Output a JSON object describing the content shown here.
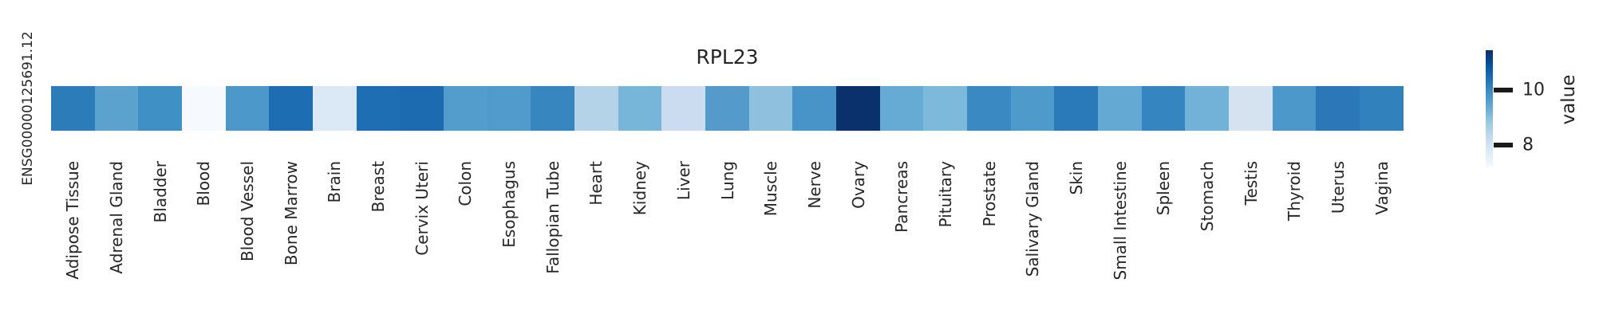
{
  "figure": {
    "title": "RPL23",
    "row_label": "ENSG00000125691.12",
    "text_color": "#262626",
    "background_color": "#ffffff"
  },
  "chart_data": {
    "type": "heatmap",
    "title": "RPL23",
    "rows": [
      "ENSG00000125691.12"
    ],
    "categories": [
      "Adipose Tissue",
      "Adrenal Gland",
      "Bladder",
      "Blood",
      "Blood Vessel",
      "Bone Marrow",
      "Brain",
      "Breast",
      "Cervix Uteri",
      "Colon",
      "Esophagus",
      "Fallopian Tube",
      "Heart",
      "Kidney",
      "Liver",
      "Lung",
      "Muscle",
      "Nerve",
      "Ovary",
      "Pancreas",
      "Pituitary",
      "Prostate",
      "Salivary Gland",
      "Skin",
      "Small Intestine",
      "Spleen",
      "Stomach",
      "Testis",
      "Thyroid",
      "Uterus",
      "Vagina"
    ],
    "values": [
      10.2,
      9.5,
      9.9,
      7.25,
      9.7,
      10.5,
      7.8,
      10.4,
      10.5,
      9.6,
      9.7,
      10.0,
      8.5,
      9.2,
      8.2,
      9.6,
      9.0,
      9.8,
      11.4,
      9.4,
      9.1,
      10.0,
      9.7,
      10.2,
      9.4,
      10.1,
      9.2,
      7.9,
      9.7,
      10.2,
      10.1
    ],
    "cell_colors": [
      "#2d7cba",
      "#5ba2cf",
      "#3f90c5",
      "#f6fafe",
      "#4c98ca",
      "#1d6db2",
      "#dbe8f5",
      "#1e6eb3",
      "#1c6bb0",
      "#539dcc",
      "#509bcb",
      "#3786c0",
      "#b4d3e9",
      "#77b5d9",
      "#cbdcf0",
      "#549acb",
      "#8fc1de",
      "#4893c7",
      "#0a316b",
      "#66abd4",
      "#7db9db",
      "#3a89c2",
      "#4e9acb",
      "#2a7ab9",
      "#64a9d3",
      "#3585c0",
      "#73b2d8",
      "#d5e3f1",
      "#4c98ca",
      "#2b77b7",
      "#3181bd"
    ],
    "colorbar": {
      "label": "value",
      "ticks": [
        10,
        8
      ],
      "tick_labels": [
        "10",
        "8"
      ],
      "vmin": 7.19,
      "vmax": 11.45,
      "colormap": "Blues",
      "gradient_bottom_to_top": [
        "#f7fbff",
        "#deebf7",
        "#c6dbef",
        "#9ecae1",
        "#6baed6",
        "#4292c6",
        "#2171b5",
        "#08519c",
        "#08306b"
      ]
    },
    "grid": false,
    "legend_position": "right-colorbar"
  }
}
